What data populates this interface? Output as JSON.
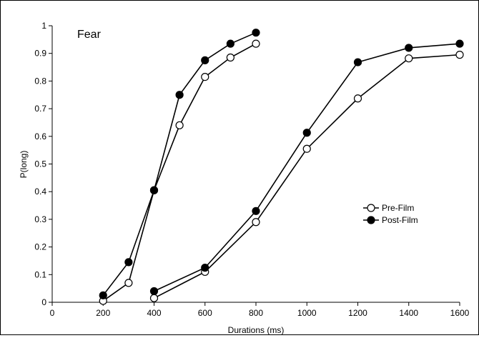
{
  "chart_data": {
    "type": "line",
    "title": "Fear",
    "xlabel": "Durations (ms)",
    "ylabel": "P(long)",
    "xlim": [
      0,
      1600
    ],
    "ylim": [
      0,
      1
    ],
    "xticks": [
      0,
      200,
      400,
      600,
      800,
      1000,
      1200,
      1400,
      1600
    ],
    "yticks": [
      0,
      0.1,
      0.2,
      0.3,
      0.4,
      0.5,
      0.6,
      0.7,
      0.8,
      0.9,
      1
    ],
    "grid": false,
    "legend_position": "right",
    "series": [
      {
        "name": "Pre-Film",
        "marker": "open-circle",
        "color": "#000000",
        "segment": "short",
        "x": [
          200,
          300,
          400,
          500,
          600,
          700,
          800
        ],
        "y": [
          0.005,
          0.07,
          0.405,
          0.64,
          0.815,
          0.885,
          0.935
        ]
      },
      {
        "name": "Post-Film",
        "marker": "filled-circle",
        "color": "#000000",
        "segment": "short",
        "x": [
          200,
          300,
          400,
          500,
          600,
          700,
          800
        ],
        "y": [
          0.025,
          0.145,
          0.405,
          0.75,
          0.875,
          0.935,
          0.975
        ]
      },
      {
        "name": "Pre-Film",
        "marker": "open-circle",
        "color": "#000000",
        "segment": "long",
        "x": [
          400,
          600,
          800,
          1000,
          1200,
          1400,
          1600
        ],
        "y": [
          0.015,
          0.11,
          0.29,
          0.555,
          0.737,
          0.882,
          0.895
        ]
      },
      {
        "name": "Post-Film",
        "marker": "filled-circle",
        "color": "#000000",
        "segment": "long",
        "x": [
          400,
          600,
          800,
          1000,
          1200,
          1400,
          1600
        ],
        "y": [
          0.04,
          0.125,
          0.33,
          0.613,
          0.868,
          0.92,
          0.935
        ]
      }
    ],
    "legend": [
      {
        "label": "Pre-Film",
        "marker": "open-circle"
      },
      {
        "label": "Post-Film",
        "marker": "filled-circle"
      }
    ]
  }
}
